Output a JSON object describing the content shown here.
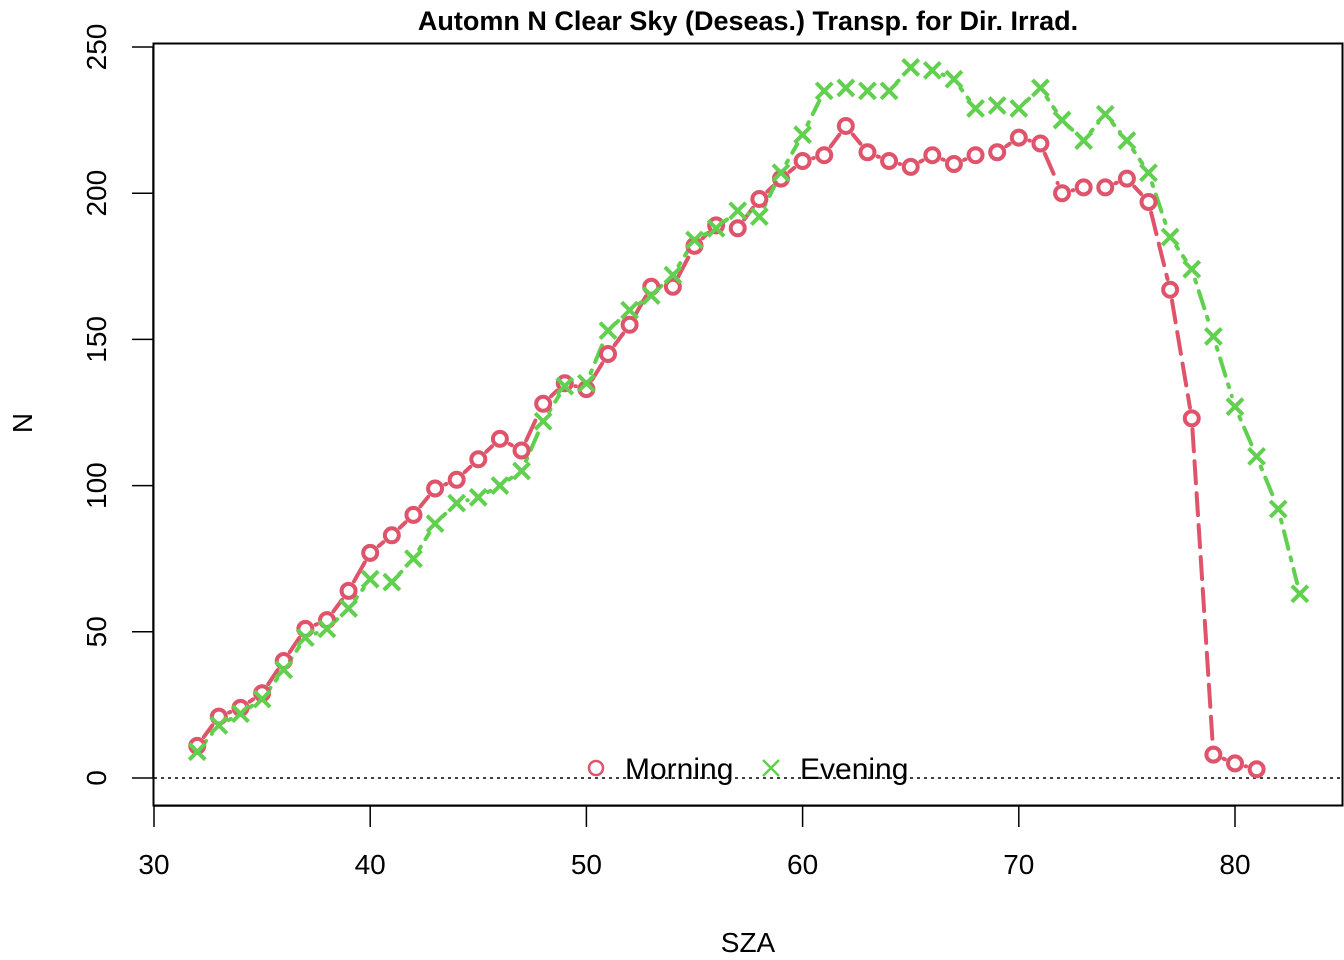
{
  "chart_data": {
    "type": "line",
    "title": "Automn N Clear Sky (Deseas.) Transp. for Dir. Irrad.",
    "xlabel": "SZA",
    "ylabel": "N",
    "xlim": [
      30,
      85
    ],
    "ylim": [
      -10,
      252
    ],
    "x_ticks": [
      30,
      40,
      50,
      60,
      70,
      80
    ],
    "y_ticks": [
      0,
      50,
      100,
      150,
      200,
      250
    ],
    "reference_line": 0,
    "legend_position": "bottom-center",
    "series": [
      {
        "name": "Morning",
        "color": "#DF536B",
        "marker": "circle",
        "line_style": "long-dash",
        "x": [
          32,
          33,
          34,
          35,
          36,
          37,
          38,
          39,
          40,
          41,
          42,
          43,
          44,
          45,
          46,
          47,
          48,
          49,
          50,
          51,
          52,
          53,
          54,
          55,
          56,
          57,
          58,
          59,
          60,
          61,
          62,
          63,
          64,
          65,
          66,
          67,
          68,
          69,
          70,
          71,
          72,
          73,
          74,
          75,
          76,
          77,
          78,
          79,
          80,
          81
        ],
        "y": [
          11,
          21,
          24,
          29,
          40,
          51,
          54,
          64,
          77,
          83,
          90,
          99,
          102,
          109,
          116,
          112,
          128,
          135,
          133,
          145,
          155,
          168,
          168,
          182,
          189,
          188,
          198,
          205,
          211,
          213,
          223,
          214,
          211,
          209,
          213,
          210,
          213,
          214,
          219,
          217,
          200,
          202,
          202,
          205,
          197,
          167,
          123,
          8,
          5,
          3
        ]
      },
      {
        "name": "Evening",
        "color": "#61D04F",
        "marker": "cross",
        "line_style": "dot-dash",
        "x": [
          32,
          33,
          34,
          35,
          36,
          37,
          38,
          39,
          40,
          41,
          42,
          43,
          44,
          45,
          46,
          47,
          48,
          49,
          50,
          51,
          52,
          53,
          54,
          55,
          56,
          57,
          58,
          59,
          60,
          61,
          62,
          63,
          64,
          65,
          66,
          67,
          68,
          69,
          70,
          71,
          72,
          73,
          74,
          75,
          76,
          77,
          78,
          79,
          80,
          81,
          82,
          83
        ],
        "y": [
          9,
          18,
          22,
          27,
          37,
          48,
          51,
          58,
          68,
          67,
          75,
          87,
          94,
          96,
          100,
          105,
          122,
          134,
          135,
          153,
          160,
          165,
          172,
          184,
          188,
          194,
          192,
          207,
          220,
          235,
          236,
          235,
          235,
          243,
          242,
          239,
          229,
          230,
          229,
          236,
          225,
          218,
          227,
          218,
          207,
          185,
          174,
          151,
          127,
          110,
          92,
          63
        ]
      }
    ]
  }
}
